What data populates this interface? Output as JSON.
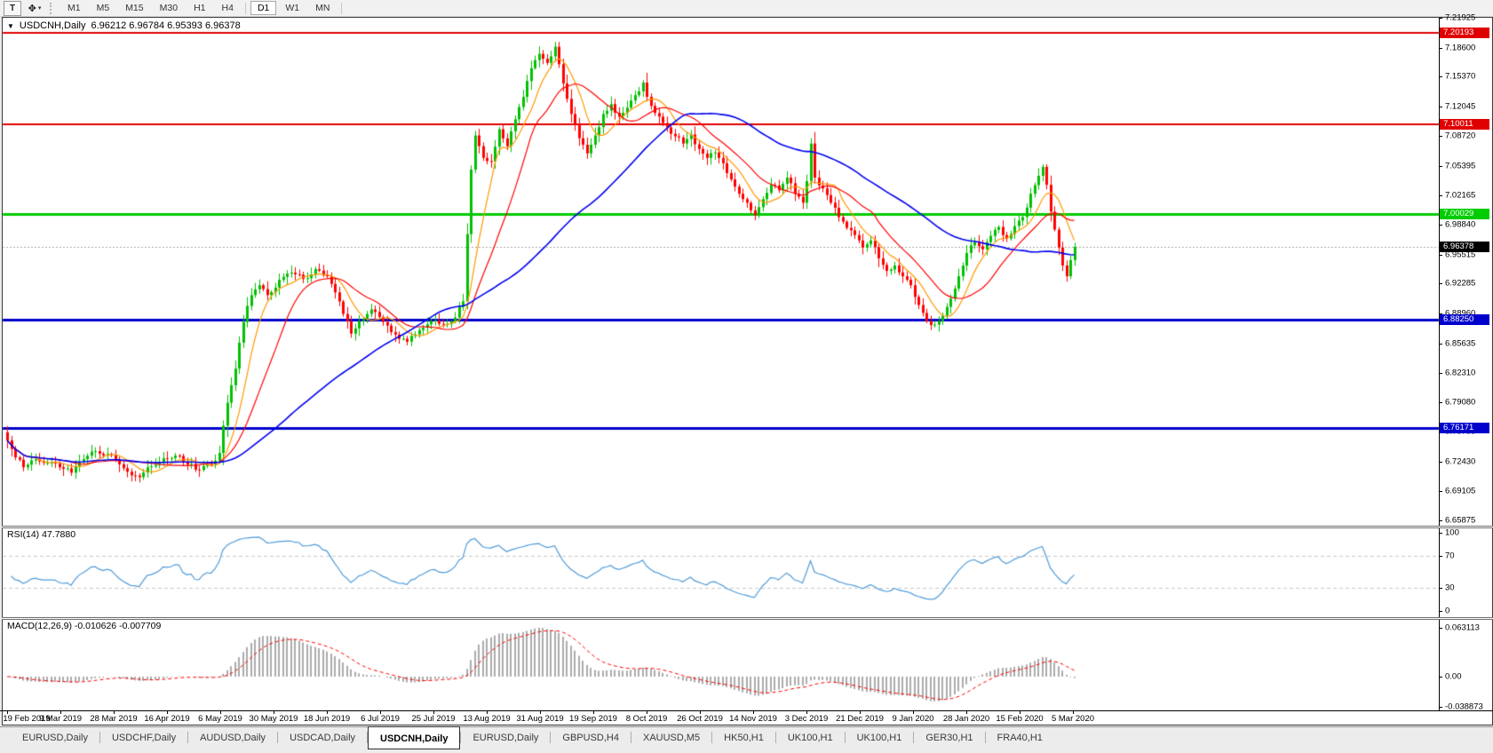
{
  "toolbar": {
    "text_tool_label": "T",
    "cursor_tool_glyph": "✥",
    "dropdown_glyph": "▾",
    "timeframes": [
      {
        "label": "M1",
        "active": false
      },
      {
        "label": "M5",
        "active": false
      },
      {
        "label": "M15",
        "active": false
      },
      {
        "label": "M30",
        "active": false
      },
      {
        "label": "H1",
        "active": false
      },
      {
        "label": "H4",
        "active": false
      },
      {
        "label": "D1",
        "active": true
      },
      {
        "label": "W1",
        "active": false
      },
      {
        "label": "MN",
        "active": false
      }
    ]
  },
  "chart_header": {
    "dropdown_glyph": "▼",
    "symbol_label": "USDCNH,Daily",
    "ohlc_text": "6.96212 6.96784 6.95393 6.96378"
  },
  "tabs": {
    "active_index": 4,
    "items": [
      {
        "label": "EURUSD,Daily"
      },
      {
        "label": "USDCHF,Daily"
      },
      {
        "label": "AUDUSD,Daily"
      },
      {
        "label": "USDCAD,Daily"
      },
      {
        "label": "USDCNH,Daily"
      },
      {
        "label": "EURUSD,Daily"
      },
      {
        "label": "GBPUSD,H4"
      },
      {
        "label": "XAUUSD,M5"
      },
      {
        "label": "HK50,H1"
      },
      {
        "label": "UK100,H1"
      },
      {
        "label": "UK100,H1"
      },
      {
        "label": "GER30,H1"
      },
      {
        "label": "FRA40,H1"
      }
    ]
  },
  "chart_data": {
    "type": "candlestick",
    "symbol": "USDCNH",
    "timeframe": "Daily",
    "title": "USDCNH,Daily 6.96212 6.96784 6.95393 6.96378",
    "price_axis": {
      "max": 7.21925,
      "min": 6.65387,
      "ticks": [
        "7.21925",
        "7.18600",
        "7.15370",
        "7.12045",
        "7.08720",
        "7.05395",
        "7.02165",
        "6.98840",
        "6.95515",
        "6.92285",
        "6.88960",
        "6.85635",
        "6.82310",
        "6.79080",
        "6.75755",
        "6.72430",
        "6.69105",
        "6.65875"
      ]
    },
    "x_axis": {
      "dates": [
        "19 Feb 2019",
        "9 Mar 2019",
        "28 Mar 2019",
        "16 Apr 2019",
        "6 May 2019",
        "30 May 2019",
        "18 Jun 2019",
        "6 Jul 2019",
        "25 Jul 2019",
        "13 Aug 2019",
        "31 Aug 2019",
        "19 Sep 2019",
        "8 Oct 2019",
        "26 Oct 2019",
        "14 Nov 2019",
        "3 Dec 2019",
        "21 Dec 2019",
        "9 Jan 2020",
        "28 Jan 2020",
        "15 Feb 2020",
        "5 Mar 2020"
      ]
    },
    "levels": [
      {
        "value": 7.20193,
        "label": "7.20193",
        "color": "#e10000",
        "width": 2
      },
      {
        "value": 7.10011,
        "label": "7.10011",
        "color": "#e10000",
        "width": 2
      },
      {
        "value": 7.00029,
        "label": "7.00029",
        "color": "#00cc00",
        "width": 3
      },
      {
        "value": 6.8825,
        "label": "6.88250",
        "color": "#0000cc",
        "width": 3
      },
      {
        "value": 6.76171,
        "label": "6.76171",
        "color": "#0000cc",
        "width": 3
      }
    ],
    "current_price": {
      "value": 6.96378,
      "label": "6.96378",
      "box_color": "#000000"
    },
    "colors": {
      "up": "#00c000",
      "down": "#ff0000",
      "wick_up": "#00a000",
      "wick_down": "#e00000",
      "price_dotted_line": "#a8a8a8"
    },
    "moving_averages": [
      {
        "period": 8,
        "color": "#ff9900",
        "width": 1.2
      },
      {
        "period": 17,
        "color": "#ff0000",
        "width": 1.2
      },
      {
        "period": 55,
        "color": "#0000ee",
        "width": 1.6
      }
    ],
    "candles": {
      "count": 268,
      "first_open": 6.757,
      "close_anchors": [
        [
          0,
          6.748
        ],
        [
          2,
          6.729
        ],
        [
          4,
          6.718
        ],
        [
          7,
          6.727
        ],
        [
          10,
          6.723
        ],
        [
          13,
          6.718
        ],
        [
          16,
          6.712
        ],
        [
          19,
          6.727
        ],
        [
          22,
          6.736
        ],
        [
          25,
          6.733
        ],
        [
          27,
          6.727
        ],
        [
          30,
          6.713
        ],
        [
          33,
          6.707
        ],
        [
          36,
          6.719
        ],
        [
          39,
          6.728
        ],
        [
          42,
          6.731
        ],
        [
          45,
          6.721
        ],
        [
          48,
          6.715
        ],
        [
          51,
          6.721
        ],
        [
          53,
          6.734
        ],
        [
          55,
          6.79
        ],
        [
          57,
          6.828
        ],
        [
          59,
          6.88
        ],
        [
          61,
          6.91
        ],
        [
          63,
          6.921
        ],
        [
          65,
          6.91
        ],
        [
          68,
          6.927
        ],
        [
          71,
          6.935
        ],
        [
          74,
          6.928
        ],
        [
          77,
          6.939
        ],
        [
          80,
          6.931
        ],
        [
          82,
          6.913
        ],
        [
          84,
          6.889
        ],
        [
          86,
          6.867
        ],
        [
          88,
          6.881
        ],
        [
          91,
          6.894
        ],
        [
          94,
          6.88
        ],
        [
          97,
          6.866
        ],
        [
          100,
          6.858
        ],
        [
          103,
          6.871
        ],
        [
          106,
          6.881
        ],
        [
          109,
          6.877
        ],
        [
          112,
          6.885
        ],
        [
          114,
          6.903
        ],
        [
          115,
          6.978
        ],
        [
          116,
          7.05
        ],
        [
          117,
          7.088
        ],
        [
          119,
          7.063
        ],
        [
          121,
          7.059
        ],
        [
          123,
          7.095
        ],
        [
          125,
          7.076
        ],
        [
          127,
          7.106
        ],
        [
          129,
          7.131
        ],
        [
          131,
          7.163
        ],
        [
          133,
          7.179
        ],
        [
          135,
          7.169
        ],
        [
          137,
          7.187
        ],
        [
          139,
          7.146
        ],
        [
          141,
          7.112
        ],
        [
          143,
          7.085
        ],
        [
          145,
          7.068
        ],
        [
          147,
          7.088
        ],
        [
          149,
          7.112
        ],
        [
          151,
          7.123
        ],
        [
          153,
          7.109
        ],
        [
          155,
          7.119
        ],
        [
          157,
          7.133
        ],
        [
          159,
          7.147
        ],
        [
          161,
          7.121
        ],
        [
          163,
          7.109
        ],
        [
          165,
          7.097
        ],
        [
          167,
          7.087
        ],
        [
          169,
          7.079
        ],
        [
          171,
          7.089
        ],
        [
          173,
          7.073
        ],
        [
          175,
          7.063
        ],
        [
          177,
          7.069
        ],
        [
          179,
          7.057
        ],
        [
          181,
          7.039
        ],
        [
          183,
          7.023
        ],
        [
          185,
          7.013
        ],
        [
          187,
          6.999
        ],
        [
          189,
          7.017
        ],
        [
          191,
          7.033
        ],
        [
          193,
          7.027
        ],
        [
          195,
          7.041
        ],
        [
          197,
          7.023
        ],
        [
          199,
          7.013
        ],
        [
          200,
          7.037
        ],
        [
          201,
          7.079
        ],
        [
          202,
          7.041
        ],
        [
          204,
          7.029
        ],
        [
          206,
          7.013
        ],
        [
          208,
          6.997
        ],
        [
          210,
          6.985
        ],
        [
          212,
          6.977
        ],
        [
          214,
          6.963
        ],
        [
          216,
          6.971
        ],
        [
          218,
          6.951
        ],
        [
          220,
          6.937
        ],
        [
          222,
          6.943
        ],
        [
          224,
          6.931
        ],
        [
          226,
          6.921
        ],
        [
          228,
          6.899
        ],
        [
          230,
          6.881
        ],
        [
          232,
          6.877
        ],
        [
          234,
          6.887
        ],
        [
          236,
          6.906
        ],
        [
          238,
          6.931
        ],
        [
          240,
          6.957
        ],
        [
          242,
          6.969
        ],
        [
          244,
          6.961
        ],
        [
          246,
          6.976
        ],
        [
          248,
          6.986
        ],
        [
          250,
          6.973
        ],
        [
          252,
          6.987
        ],
        [
          254,
          6.997
        ],
        [
          256,
          7.023
        ],
        [
          258,
          7.043
        ],
        [
          259,
          7.053
        ],
        [
          260,
          7.033
        ],
        [
          261,
          7.003
        ],
        [
          262,
          6.983
        ],
        [
          263,
          6.963
        ],
        [
          264,
          6.943
        ],
        [
          265,
          6.931
        ],
        [
          266,
          6.949
        ],
        [
          267,
          6.96378
        ]
      ]
    },
    "indicators": [
      {
        "name": "RSI",
        "label": "RSI(14) 47.7880",
        "period": 14,
        "current_value": "47.7880",
        "color": "#4f9bd9",
        "axis_ticks": [
          "100",
          "70",
          "30",
          "0"
        ],
        "dashed_levels": [
          70,
          30
        ],
        "level_line_color": "#c8c8c8"
      },
      {
        "name": "MACD",
        "label": "MACD(12,26,9) -0.010626 -0.007709",
        "params": "12,26,9",
        "values": [
          "-0.010626",
          "-0.007709"
        ],
        "histogram_color": "#ababab",
        "signal_color": "#ff0000",
        "axis_ticks": [
          {
            "text": "0.063113",
            "value": 0.063113
          },
          {
            "text": "0.00",
            "value": 0.0
          },
          {
            "text": "-0.038873",
            "value": -0.038873
          }
        ]
      }
    ]
  }
}
